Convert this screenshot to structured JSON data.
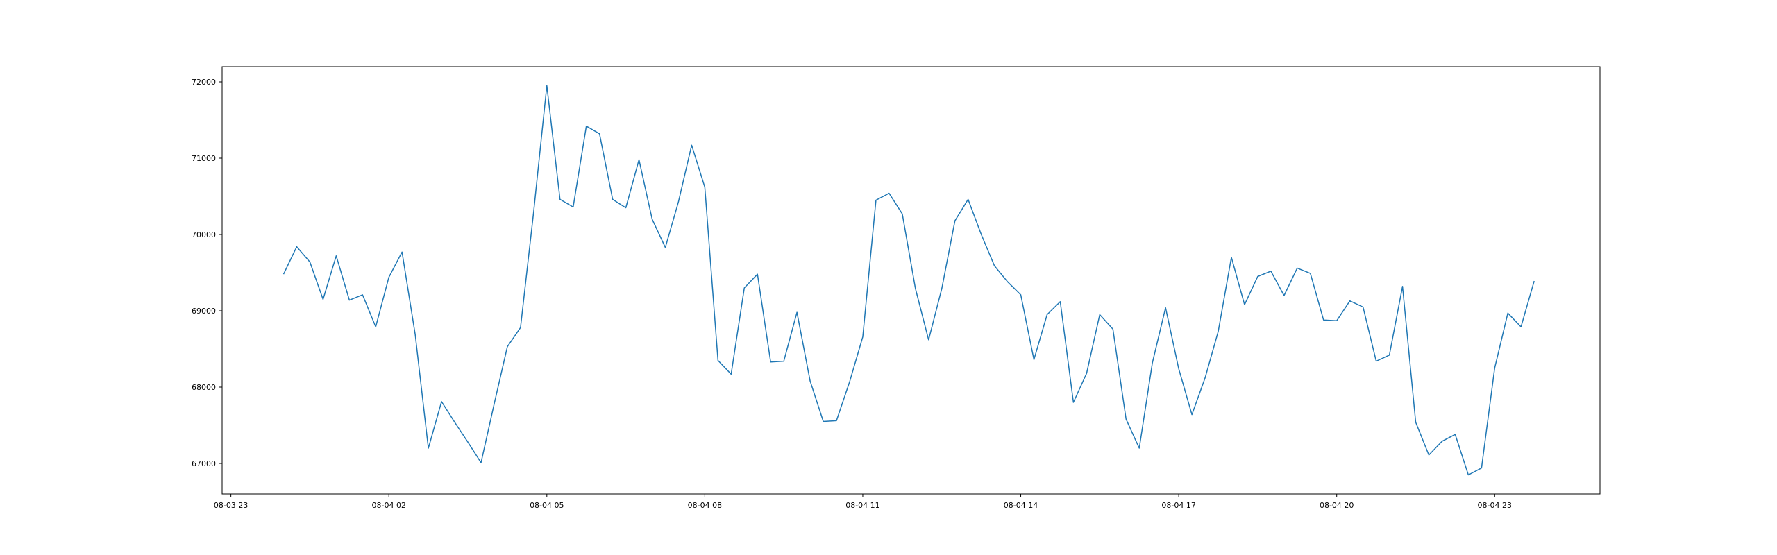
{
  "chart_data": {
    "type": "line",
    "title": "",
    "xlabel": "",
    "ylabel": "",
    "x_axis_type": "datetime",
    "x_tick_labels": [
      "08-03 23",
      "08-04 02",
      "08-04 05",
      "08-04 08",
      "08-04 11",
      "08-04 14",
      "08-04 17",
      "08-04 20",
      "08-04 23"
    ],
    "x_tick_times": [
      "2024-08-03T23:00",
      "2024-08-04T02:00",
      "2024-08-04T05:00",
      "2024-08-04T08:00",
      "2024-08-04T11:00",
      "2024-08-04T14:00",
      "2024-08-04T17:00",
      "2024-08-04T20:00",
      "2024-08-04T23:00"
    ],
    "xlim": [
      "2024-08-03T22:50",
      "2024-08-05T01:00"
    ],
    "y_ticks": [
      67000,
      68000,
      69000,
      70000,
      71000,
      72000
    ],
    "ylim": [
      66600,
      72200
    ],
    "grid": false,
    "legend": "none",
    "series": [
      {
        "color": "#1f77b4",
        "x_start": "2024-08-04T00:00",
        "x_step_minutes": 15,
        "values": [
          69480,
          69840,
          69640,
          69150,
          69720,
          69140,
          69210,
          68790,
          69440,
          69770,
          68690,
          67200,
          67810,
          67540,
          67280,
          67010,
          67780,
          68530,
          68780,
          70300,
          71950,
          70460,
          70360,
          71420,
          71320,
          70460,
          70350,
          70980,
          70200,
          69830,
          70430,
          71170,
          70620,
          68350,
          68170,
          69300,
          69480,
          68330,
          68340,
          68980,
          68080,
          67550,
          67560,
          68070,
          68660,
          70450,
          70540,
          70270,
          69290,
          68620,
          69290,
          70180,
          70460,
          70000,
          69590,
          69380,
          69210,
          68360,
          68950,
          69120,
          67800,
          68180,
          68950,
          68760,
          67580,
          67200,
          68320,
          69040,
          68240,
          67640,
          68120,
          68730,
          69700,
          69080,
          69450,
          69520,
          69200,
          69560,
          69490,
          68880,
          68870,
          69130,
          69050,
          68340,
          68420,
          69320,
          67540,
          67110,
          67290,
          67380,
          66850,
          66940,
          68250,
          68970,
          68790,
          69390
        ]
      }
    ]
  }
}
